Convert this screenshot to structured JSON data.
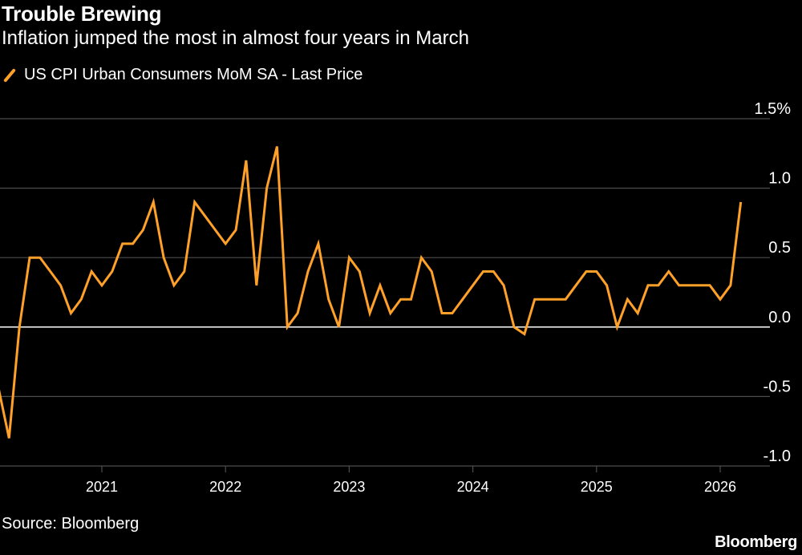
{
  "header": {
    "title": "Trouble Brewing",
    "subtitle": "Inflation jumped the most in almost four years in March"
  },
  "legend": {
    "label": "US CPI Urban Consumers MoM SA - Last Price"
  },
  "footer": {
    "source": "Source: Bloomberg",
    "brand": "Bloomberg"
  },
  "colors": {
    "background": "#000000",
    "series": "#ffa029",
    "grid": "#4d4d4d",
    "zero_line": "#ffffff",
    "text": "#ffffff"
  },
  "chart_data": {
    "type": "line",
    "title": "Trouble Brewing",
    "subtitle": "Inflation jumped the most in almost four years in March",
    "xlabel": "",
    "ylabel": "",
    "ylim": [
      -1.0,
      1.5
    ],
    "y_ticks": [
      -1.0,
      -0.5,
      0.0,
      0.5,
      1.0,
      1.5
    ],
    "y_tick_labels": [
      "-1.0",
      "-0.5",
      "0.0",
      "0.5",
      "1.0",
      "1.5%"
    ],
    "x_ticks": [
      "2021",
      "2022",
      "2023",
      "2024",
      "2025",
      "2026"
    ],
    "grid": true,
    "legend_position": "top-left",
    "x_start": "2020-04",
    "x_end": "2026-04",
    "series": [
      {
        "name": "US CPI Urban Consumers MoM SA - Last Price",
        "x": [
          "2020-03",
          "2020-04",
          "2020-05",
          "2020-06",
          "2020-07",
          "2020-08",
          "2020-09",
          "2020-10",
          "2020-11",
          "2020-12",
          "2021-01",
          "2021-02",
          "2021-03",
          "2021-04",
          "2021-05",
          "2021-06",
          "2021-07",
          "2021-08",
          "2021-09",
          "2021-10",
          "2021-11",
          "2021-12",
          "2022-01",
          "2022-02",
          "2022-03",
          "2022-04",
          "2022-05",
          "2022-06",
          "2022-07",
          "2022-08",
          "2022-09",
          "2022-10",
          "2022-11",
          "2022-12",
          "2023-01",
          "2023-02",
          "2023-03",
          "2023-04",
          "2023-05",
          "2023-06",
          "2023-07",
          "2023-08",
          "2023-09",
          "2023-10",
          "2023-11",
          "2023-12",
          "2024-01",
          "2024-02",
          "2024-03",
          "2024-04",
          "2024-05",
          "2024-06",
          "2024-07",
          "2024-08",
          "2024-09",
          "2024-10",
          "2024-11",
          "2024-12",
          "2025-01",
          "2025-02",
          "2025-03",
          "2025-04",
          "2025-05",
          "2025-06",
          "2025-07",
          "2025-08",
          "2025-09",
          "2025-10",
          "2025-11",
          "2025-12",
          "2026-01",
          "2026-02",
          "2026-03"
        ],
        "values": [
          -0.45,
          -0.8,
          0.0,
          0.5,
          0.5,
          0.4,
          0.3,
          0.1,
          0.2,
          0.4,
          0.3,
          0.4,
          0.6,
          0.6,
          0.7,
          0.9,
          0.5,
          0.3,
          0.4,
          0.9,
          0.8,
          0.7,
          0.6,
          0.7,
          1.2,
          0.3,
          1.0,
          1.3,
          0.0,
          0.1,
          0.4,
          0.6,
          0.2,
          0.0,
          0.5,
          0.4,
          0.1,
          0.3,
          0.1,
          0.2,
          0.2,
          0.5,
          0.4,
          0.1,
          0.1,
          0.2,
          0.3,
          0.4,
          0.4,
          0.3,
          0.0,
          -0.05,
          0.2,
          0.2,
          0.2,
          0.2,
          0.3,
          0.4,
          0.4,
          0.3,
          0.0,
          0.2,
          0.1,
          0.3,
          0.3,
          0.4,
          0.3,
          0.3,
          0.3,
          0.3,
          0.2,
          0.3,
          0.9
        ]
      }
    ]
  }
}
